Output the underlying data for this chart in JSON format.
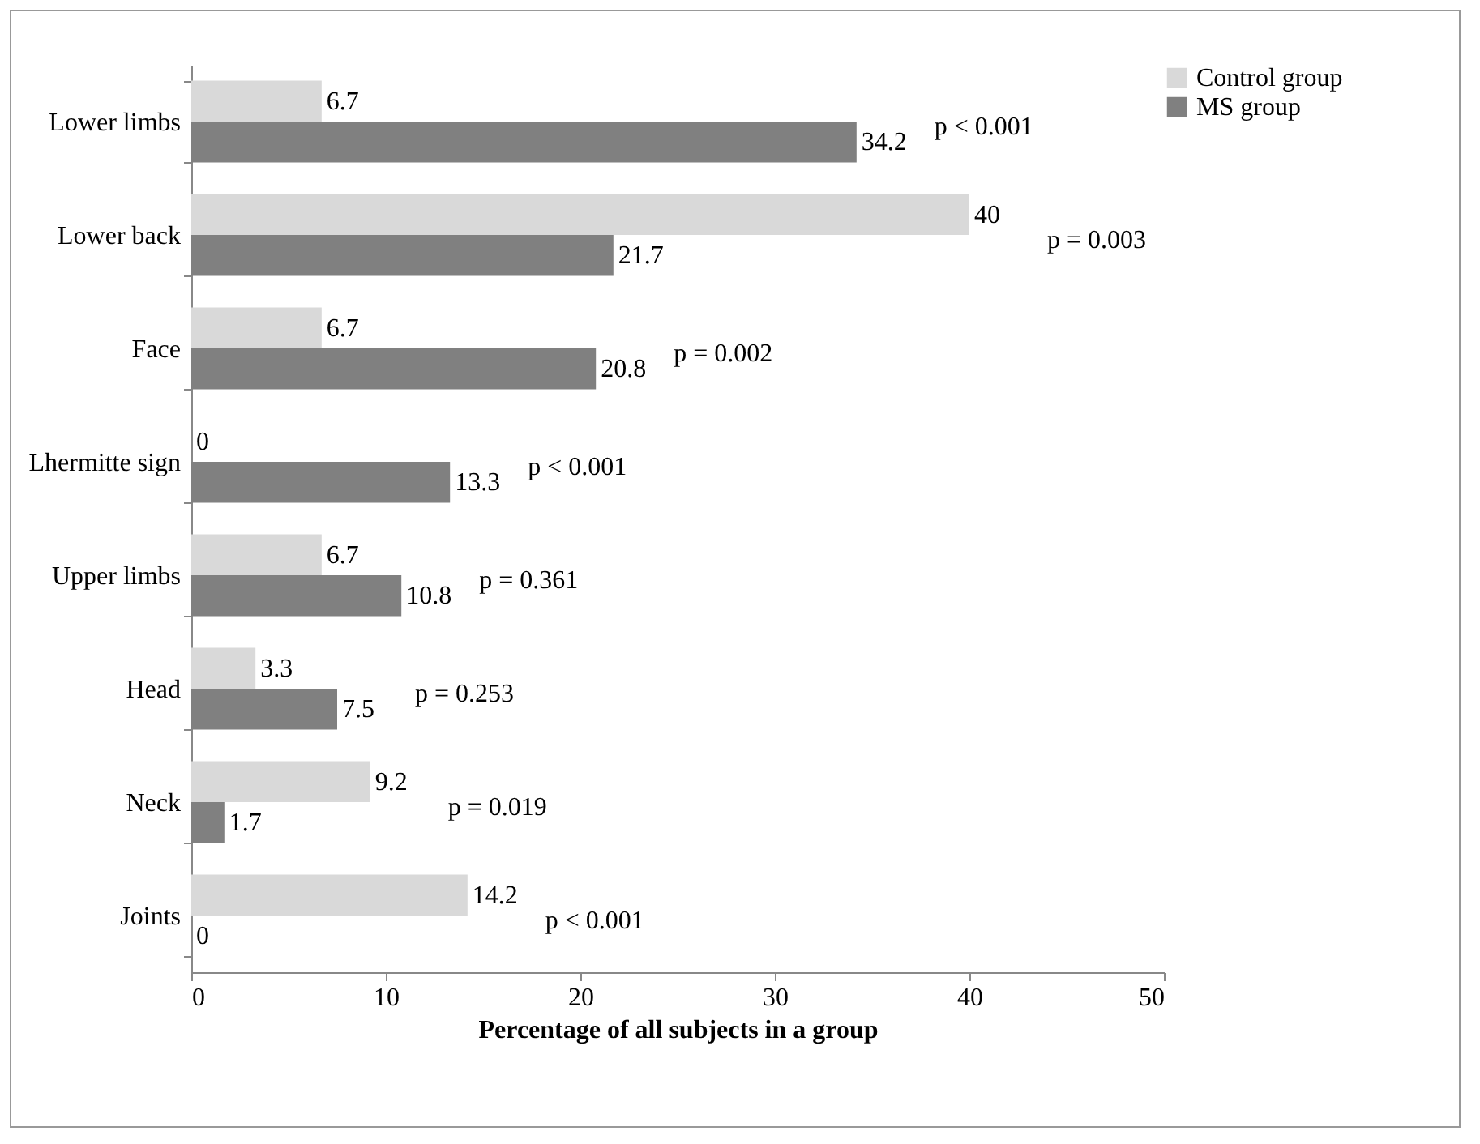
{
  "chart_data": {
    "type": "bar",
    "orientation": "horizontal",
    "xlabel": "Percentage of all subjects in a group",
    "categories": [
      "Lower limbs",
      "Lower back",
      "Face",
      "Lhermitte sign",
      "Upper limbs",
      "Head",
      "Neck",
      "Joints"
    ],
    "series": [
      {
        "name": "Control group",
        "color": "#d9d9d9",
        "values": [
          6.7,
          40,
          6.7,
          0,
          6.7,
          3.3,
          9.2,
          14.2
        ]
      },
      {
        "name": "MS group",
        "color": "#808080",
        "values": [
          34.2,
          21.7,
          20.8,
          13.3,
          10.8,
          7.5,
          1.7,
          0
        ]
      }
    ],
    "data_labels": true,
    "xlim": [
      0,
      50
    ],
    "xticks": [
      0,
      10,
      20,
      30,
      40,
      50
    ],
    "grid": false,
    "legend": "right",
    "annotations": [
      "p < 0.001",
      "p = 0.003",
      "p = 0.002",
      "p < 0.001",
      "p = 0.361",
      "p = 0.253",
      "p = 0.019",
      "p < 0.001"
    ]
  }
}
